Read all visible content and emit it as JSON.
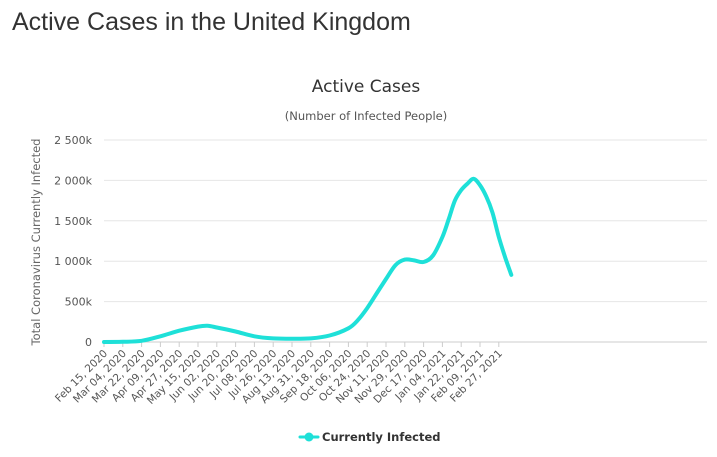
{
  "page": {
    "title": "Active Cases in the United Kingdom"
  },
  "chart_data": {
    "type": "line",
    "title": "Active Cases",
    "subtitle": "(Number of Infected People)",
    "ylabel": "Total Coronavirus Currently Infected",
    "xlabel": "",
    "ylim": [
      0,
      2500000
    ],
    "yticks": [
      0,
      500000,
      1000000,
      1500000,
      2000000,
      2500000
    ],
    "ytick_labels": [
      "0",
      "500k",
      "1 000k",
      "1 500k",
      "2 000k",
      "2 500k"
    ],
    "xtick_labels": [
      "Feb 15, 2020",
      "Mar 04, 2020",
      "Mar 22, 2020",
      "Apr 09, 2020",
      "Apr 27, 2020",
      "May 15, 2020",
      "Jun 02, 2020",
      "Jun 20, 2020",
      "Jul 08, 2020",
      "Jul 26, 2020",
      "Aug 13, 2020",
      "Aug 31, 2020",
      "Sep 18, 2020",
      "Oct 06, 2020",
      "Oct 24, 2020",
      "Nov 11, 2020",
      "Nov 29, 2020",
      "Dec 17, 2020",
      "Jan 04, 2021",
      "Jan 22, 2021",
      "Feb 09, 2021",
      "Feb 27, 2021"
    ],
    "grid": true,
    "legend_position": "bottom",
    "series": [
      {
        "name": "Currently Infected",
        "color": "#1ee0d8",
        "x": [
          "Feb 15, 2020",
          "Mar 04, 2020",
          "Mar 22, 2020",
          "Apr 09, 2020",
          "Apr 27, 2020",
          "May 15, 2020",
          "May 24, 2020",
          "Jun 02, 2020",
          "Jun 20, 2020",
          "Jul 08, 2020",
          "Jul 26, 2020",
          "Aug 13, 2020",
          "Aug 31, 2020",
          "Sep 18, 2020",
          "Oct 06, 2020",
          "Oct 15, 2020",
          "Oct 24, 2020",
          "Nov 02, 2020",
          "Nov 11, 2020",
          "Nov 20, 2020",
          "Nov 29, 2020",
          "Dec 08, 2020",
          "Dec 17, 2020",
          "Dec 26, 2020",
          "Jan 04, 2021",
          "Jan 10, 2021",
          "Jan 16, 2021",
          "Jan 22, 2021",
          "Jan 28, 2021",
          "Feb 03, 2021",
          "Feb 09, 2021",
          "Feb 15, 2021",
          "Feb 21, 2021",
          "Feb 27, 2021",
          "Mar 05, 2021",
          "Mar 11, 2021"
        ],
        "values": [
          0,
          2000,
          15000,
          70000,
          140000,
          190000,
          200000,
          180000,
          130000,
          70000,
          45000,
          40000,
          45000,
          80000,
          170000,
          270000,
          420000,
          600000,
          780000,
          950000,
          1020000,
          1010000,
          990000,
          1070000,
          1300000,
          1520000,
          1750000,
          1880000,
          1960000,
          2020000,
          1940000,
          1800000,
          1600000,
          1300000,
          1050000,
          830000
        ]
      }
    ]
  }
}
